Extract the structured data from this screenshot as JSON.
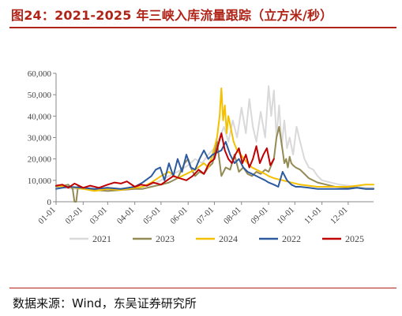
{
  "figure_title": "图24：2021-2025 年三峡入库流量跟踪（立方米/秒）",
  "source_text": "数据来源：Wind，东吴证券研究所",
  "chart_data": {
    "type": "line",
    "title": "2021-2025 年三峡入库流量跟踪（立方米/秒）",
    "xlabel": "",
    "ylabel": "",
    "ylim": [
      0,
      60000
    ],
    "yticks": [
      0,
      10000,
      20000,
      30000,
      40000,
      50000,
      60000
    ],
    "ytick_labels": [
      "0",
      "10,000",
      "20,000",
      "30,000",
      "40,000",
      "50,000",
      "60,000"
    ],
    "xlim": [
      1,
      364
    ],
    "xticks": [
      1,
      32,
      60,
      91,
      121,
      152,
      182,
      213,
      244,
      274,
      305,
      335
    ],
    "xtick_labels": [
      "01-01",
      "02-01",
      "03-01",
      "04-01",
      "05-01",
      "06-01",
      "07-01",
      "08-01",
      "09-01",
      "10-01",
      "11-01",
      "12-01"
    ],
    "x_unit": "day of year",
    "grid": false,
    "legend_position": "bottom",
    "series": [
      {
        "name": "2021",
        "color": "#d9d9d9",
        "x": [
          1,
          10,
          20,
          32,
          45,
          60,
          75,
          91,
          100,
          110,
          121,
          130,
          140,
          152,
          160,
          168,
          175,
          182,
          188,
          193,
          198,
          203,
          208,
          213,
          218,
          222,
          226,
          230,
          235,
          240,
          244,
          247,
          250,
          253,
          256,
          259,
          262,
          265,
          268,
          272,
          276,
          280,
          285,
          290,
          295,
          300,
          305,
          315,
          325,
          335,
          345,
          355,
          364
        ],
        "y": [
          7000,
          6500,
          6000,
          6000,
          5500,
          5500,
          6000,
          6500,
          7000,
          8000,
          10000,
          12000,
          14000,
          17000,
          20000,
          18000,
          22000,
          25000,
          30000,
          35000,
          28000,
          38000,
          30000,
          44000,
          32000,
          48000,
          35000,
          28000,
          42000,
          30000,
          54000,
          40000,
          52000,
          30000,
          45000,
          26000,
          38000,
          25000,
          30000,
          22000,
          35000,
          28000,
          20000,
          16000,
          15000,
          12000,
          10000,
          9000,
          8000,
          7500,
          7000,
          6500,
          6500
        ]
      },
      {
        "name": "2023",
        "color": "#948a54",
        "x": [
          1,
          10,
          15,
          20,
          22,
          24,
          26,
          28,
          32,
          45,
          60,
          75,
          91,
          100,
          110,
          121,
          130,
          140,
          148,
          152,
          156,
          160,
          165,
          170,
          175,
          180,
          185,
          190,
          195,
          200,
          205,
          210,
          215,
          220,
          225,
          230,
          235,
          240,
          244,
          250,
          253,
          256,
          260,
          262,
          264,
          266,
          268,
          270,
          272,
          275,
          280,
          290,
          300,
          310,
          320,
          335,
          345,
          355,
          364
        ],
        "y": [
          7000,
          7500,
          8000,
          6000,
          0,
          0,
          7000,
          6500,
          6500,
          5500,
          5000,
          5500,
          6000,
          6000,
          7000,
          8000,
          9000,
          11000,
          18000,
          20000,
          15000,
          12000,
          14000,
          13000,
          16000,
          18000,
          28000,
          12000,
          16000,
          15000,
          22000,
          14000,
          16000,
          13000,
          12000,
          14000,
          13000,
          15000,
          14000,
          20000,
          30000,
          35000,
          24000,
          18000,
          20000,
          16000,
          21000,
          18000,
          17000,
          16000,
          15000,
          11000,
          9000,
          8000,
          7000,
          6500,
          6500,
          6000,
          6000
        ]
      },
      {
        "name": "2024",
        "color": "#f4c000",
        "x": [
          1,
          15,
          32,
          45,
          60,
          75,
          91,
          100,
          110,
          121,
          130,
          140,
          150,
          160,
          170,
          175,
          180,
          185,
          188,
          190,
          192,
          194,
          196,
          198,
          200,
          204,
          208,
          212,
          216,
          220,
          225,
          230,
          235,
          240,
          244,
          250,
          260,
          270,
          280,
          290,
          300,
          310,
          320,
          335,
          345,
          355,
          364
        ],
        "y": [
          7500,
          7000,
          6000,
          5000,
          6000,
          5500,
          6500,
          7000,
          9000,
          12000,
          14000,
          11000,
          13000,
          15000,
          18000,
          16000,
          22000,
          30000,
          40000,
          53000,
          38000,
          45000,
          32000,
          40000,
          36000,
          28000,
          24000,
          22000,
          20000,
          18000,
          16000,
          15000,
          14000,
          13000,
          12000,
          11000,
          10000,
          9000,
          8000,
          7500,
          7000,
          7000,
          7000,
          7000,
          7500,
          8000,
          8000
        ]
      },
      {
        "name": "2022",
        "color": "#2e5aa0",
        "x": [
          1,
          15,
          32,
          45,
          60,
          75,
          91,
          100,
          110,
          115,
          120,
          125,
          130,
          135,
          140,
          145,
          150,
          155,
          160,
          165,
          170,
          175,
          180,
          185,
          190,
          195,
          200,
          205,
          210,
          215,
          220,
          225,
          230,
          235,
          240,
          244,
          250,
          255,
          260,
          265,
          270,
          275,
          280,
          290,
          300,
          310,
          320,
          335,
          345,
          355,
          364
        ],
        "y": [
          6000,
          7000,
          6500,
          6000,
          6500,
          6000,
          7000,
          9000,
          12000,
          15000,
          16000,
          10000,
          18000,
          12000,
          20000,
          14000,
          22000,
          16000,
          15000,
          20000,
          24000,
          20000,
          22000,
          23000,
          24000,
          28000,
          22000,
          18000,
          20000,
          16000,
          14000,
          13000,
          12000,
          11000,
          10000,
          9000,
          8000,
          7000,
          14000,
          10000,
          8000,
          7000,
          7000,
          6500,
          6000,
          6000,
          6000,
          6000,
          6500,
          6000,
          6000
        ]
      },
      {
        "name": "2025",
        "color": "#c00000",
        "x": [
          1,
          8,
          15,
          22,
          32,
          40,
          50,
          60,
          68,
          75,
          82,
          91,
          98,
          105,
          112,
          121,
          128,
          135,
          142,
          150,
          157,
          164,
          170,
          176,
          182,
          186,
          190,
          194,
          198,
          202,
          206,
          210,
          214,
          218,
          222,
          226,
          230,
          234,
          238,
          242,
          246,
          250
        ],
        "y": [
          7500,
          8000,
          6500,
          8500,
          6500,
          7500,
          6500,
          8000,
          9000,
          8500,
          9500,
          7000,
          8000,
          7500,
          9000,
          8000,
          10000,
          12000,
          11000,
          10000,
          12000,
          15000,
          13000,
          18000,
          20000,
          26000,
          32000,
          24000,
          20000,
          18000,
          22000,
          25000,
          18000,
          22000,
          16000,
          20000,
          26000,
          18000,
          22000,
          25000,
          17000,
          20000
        ]
      }
    ],
    "legend_order": [
      "2021",
      "2023",
      "2024",
      "2022",
      "2025"
    ]
  }
}
